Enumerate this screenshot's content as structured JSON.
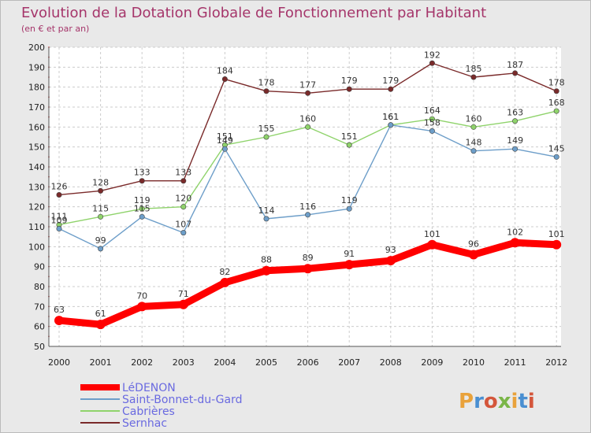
{
  "chart_data": {
    "type": "line",
    "title": "Evolution de la Dotation Globale de Fonctionnement par Habitant",
    "subtitle": "(en € et par an)",
    "xlabel": "",
    "ylabel": "",
    "ylim": [
      50,
      200
    ],
    "ytick_step": 10,
    "grid": true,
    "legend_position": "bottom-left",
    "x": [
      "2000",
      "2001",
      "2002",
      "2003",
      "2004",
      "2005",
      "2006",
      "2007",
      "2008",
      "2009",
      "2010",
      "2011",
      "2012"
    ],
    "series": [
      {
        "name": "LéDENON",
        "color": "#ff0000",
        "values": [
          63,
          61,
          70,
          71,
          82,
          88,
          89,
          91,
          93,
          101,
          96,
          102,
          101
        ],
        "show_labels": true
      },
      {
        "name": "Saint-Bonnet-du-Gard",
        "color": "#6d9ec9",
        "values": [
          109,
          99,
          115,
          107,
          149,
          114,
          116,
          119,
          161,
          158,
          148,
          149,
          145
        ],
        "show_labels": true
      },
      {
        "name": "Cabrières",
        "color": "#8fd36b",
        "values": [
          111,
          115,
          119,
          120,
          151,
          155,
          160,
          151,
          161,
          164,
          160,
          163,
          168
        ],
        "show_labels": true
      },
      {
        "name": "Sernhac",
        "color": "#7a2a2a",
        "values": [
          126,
          128,
          133,
          133,
          184,
          178,
          177,
          179,
          179,
          192,
          185,
          187,
          178
        ],
        "show_labels": true
      }
    ]
  },
  "brand": {
    "logo_text": "Proxiti"
  }
}
